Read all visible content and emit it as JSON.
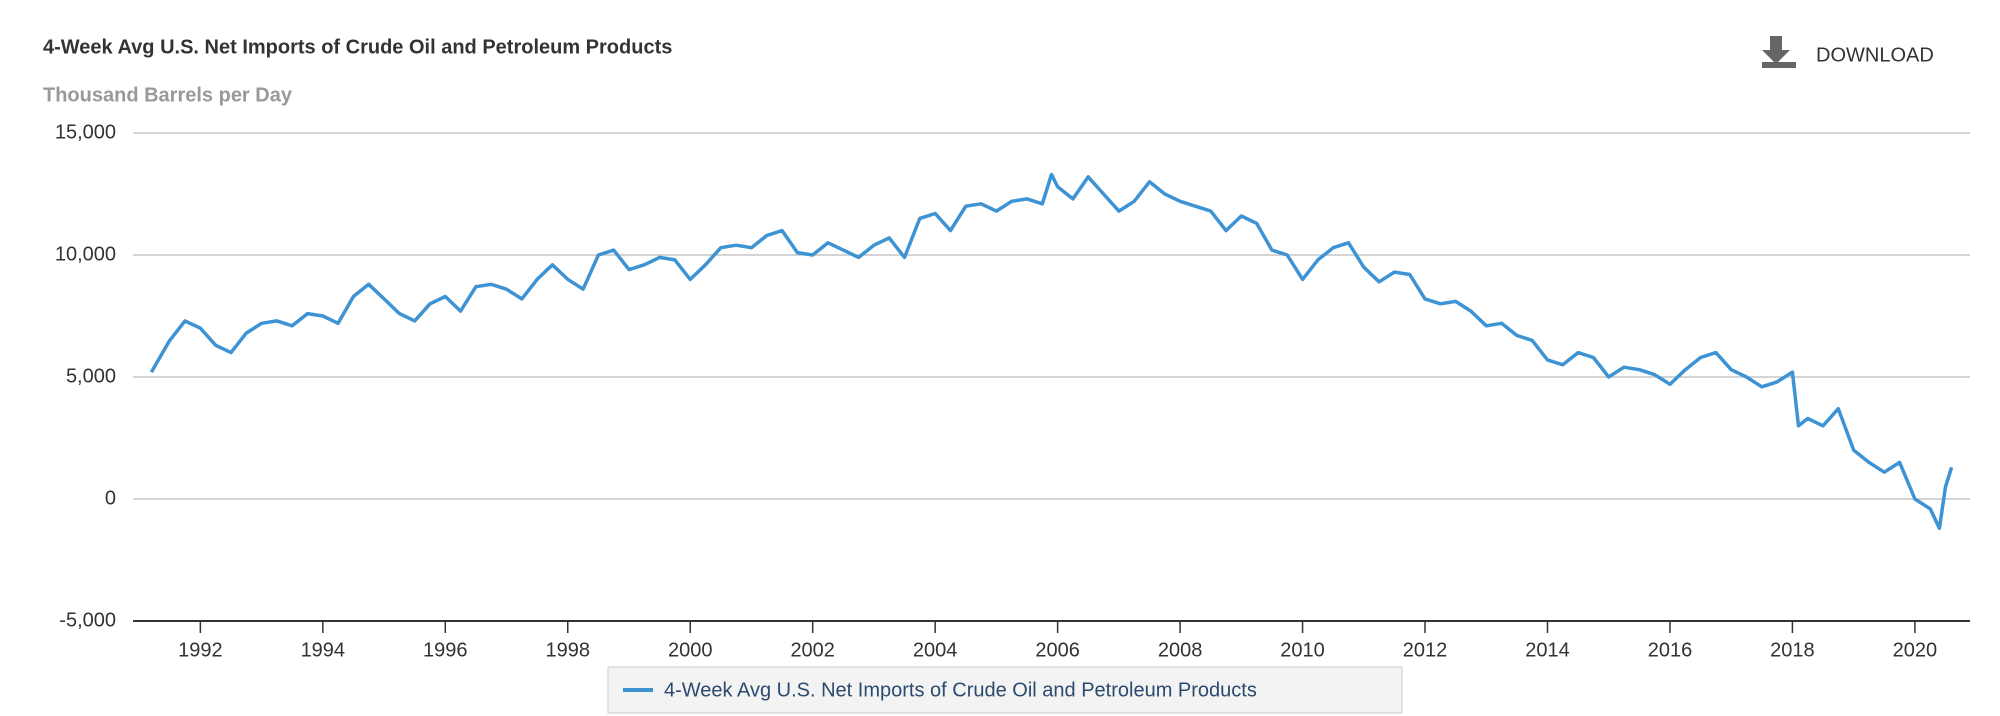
{
  "download": "DOWNLOAD",
  "chart_data": {
    "type": "line",
    "title": "4-Week Avg U.S. Net Imports of Crude Oil and Petroleum Products",
    "subtitle": "Thousand Barrels per Day",
    "x": [
      1991.2,
      1991.5,
      1991.75,
      1992.0,
      1992.25,
      1992.5,
      1992.75,
      1993.0,
      1993.25,
      1993.5,
      1993.75,
      1994.0,
      1994.25,
      1994.5,
      1994.75,
      1995.0,
      1995.25,
      1995.5,
      1995.75,
      1996.0,
      1996.25,
      1996.5,
      1996.75,
      1997.0,
      1997.25,
      1997.5,
      1997.75,
      1998.0,
      1998.25,
      1998.5,
      1998.75,
      1999.0,
      1999.25,
      1999.5,
      1999.75,
      2000.0,
      2000.25,
      2000.5,
      2000.75,
      2001.0,
      2001.25,
      2001.5,
      2001.75,
      2002.0,
      2002.25,
      2002.5,
      2002.75,
      2003.0,
      2003.25,
      2003.5,
      2003.75,
      2004.0,
      2004.25,
      2004.5,
      2004.75,
      2005.0,
      2005.25,
      2005.5,
      2005.75,
      2005.9,
      2006.0,
      2006.25,
      2006.5,
      2006.75,
      2007.0,
      2007.25,
      2007.5,
      2007.75,
      2008.0,
      2008.25,
      2008.5,
      2008.75,
      2009.0,
      2009.25,
      2009.5,
      2009.75,
      2010.0,
      2010.25,
      2010.5,
      2010.75,
      2011.0,
      2011.25,
      2011.5,
      2011.75,
      2012.0,
      2012.25,
      2012.5,
      2012.75,
      2013.0,
      2013.25,
      2013.5,
      2013.75,
      2014.0,
      2014.25,
      2014.5,
      2014.75,
      2015.0,
      2015.25,
      2015.5,
      2015.75,
      2016.0,
      2016.25,
      2016.5,
      2016.75,
      2017.0,
      2017.25,
      2017.5,
      2017.75,
      2018.0,
      2018.1,
      2018.25,
      2018.5,
      2018.75,
      2019.0,
      2019.25,
      2019.5,
      2019.75,
      2020.0,
      2020.25,
      2020.4,
      2020.5,
      2020.6
    ],
    "series": [
      {
        "name": "4-Week Avg U.S. Net Imports of Crude Oil and Petroleum Products",
        "color": "#3d93d3",
        "values": [
          5200,
          6500,
          7300,
          7000,
          6300,
          6000,
          6800,
          7200,
          7300,
          7100,
          7600,
          7500,
          7200,
          8300,
          8800,
          8200,
          7600,
          7300,
          8000,
          8300,
          7700,
          8700,
          8800,
          8600,
          8200,
          9000,
          9600,
          9000,
          8600,
          10000,
          10200,
          9400,
          9600,
          9900,
          9800,
          9000,
          9600,
          10300,
          10400,
          10300,
          10800,
          11000,
          10100,
          10000,
          10500,
          10200,
          9900,
          10400,
          10700,
          9900,
          11500,
          11700,
          11000,
          12000,
          12100,
          11800,
          12200,
          12300,
          12100,
          13300,
          12800,
          12300,
          13200,
          12500,
          11800,
          12200,
          13000,
          12500,
          12200,
          12000,
          11800,
          11000,
          11600,
          11300,
          10200,
          10000,
          9000,
          9800,
          10300,
          10500,
          9500,
          8900,
          9300,
          9200,
          8200,
          8000,
          8100,
          7700,
          7100,
          7200,
          6700,
          6500,
          5700,
          5500,
          6000,
          5800,
          5000,
          5400,
          5300,
          5100,
          4700,
          5300,
          5800,
          6000,
          5300,
          5000,
          4600,
          4800,
          5200,
          3000,
          3300,
          3000,
          3700,
          2000,
          1500,
          1100,
          1500,
          0,
          -400,
          -1200,
          500,
          1300
        ]
      }
    ],
    "xlim": [
      1990.9,
      2020.9
    ],
    "xticks": [
      1992,
      1994,
      1996,
      1998,
      2000,
      2002,
      2004,
      2006,
      2008,
      2010,
      2012,
      2014,
      2016,
      2018,
      2020
    ],
    "ylim": [
      -5000,
      15000
    ],
    "yticks": [
      {
        "value": -5000,
        "label": "-5,000"
      },
      0,
      {
        "value": 5000,
        "label": "5,000"
      },
      {
        "value": 10000,
        "label": "10,000"
      },
      {
        "value": 15000,
        "label": "15,000"
      }
    ],
    "grid": true
  }
}
